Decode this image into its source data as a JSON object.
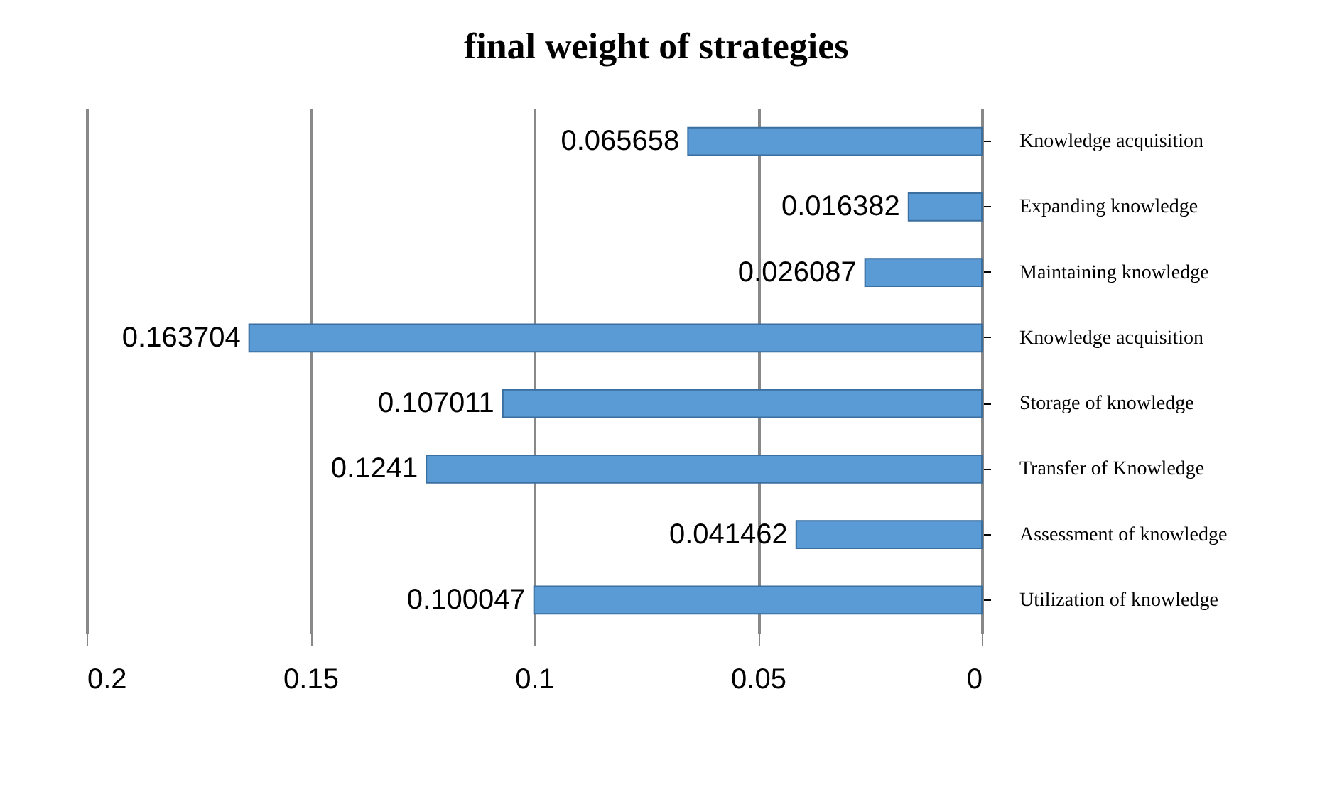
{
  "chart_data": {
    "type": "bar",
    "title": "final weight of strategies",
    "orientation": "horizontal",
    "categories": [
      "Knowledge acquisition",
      "Expanding knowledge",
      "Maintaining knowledge",
      "Knowledge acquisition",
      "Storage of knowledge",
      "Transfer of Knowledge",
      "Assessment of knowledge",
      "Utilization of knowledge"
    ],
    "values": [
      0.065658,
      0.016382,
      0.026087,
      0.163704,
      0.107011,
      0.1241,
      0.041462,
      0.100047
    ],
    "color": "#5b9bd5",
    "xlim": [
      0.2,
      0
    ],
    "xticks": [
      0.2,
      0.15,
      0.1,
      0.05,
      0
    ],
    "grid": "x",
    "data_labels": true
  }
}
